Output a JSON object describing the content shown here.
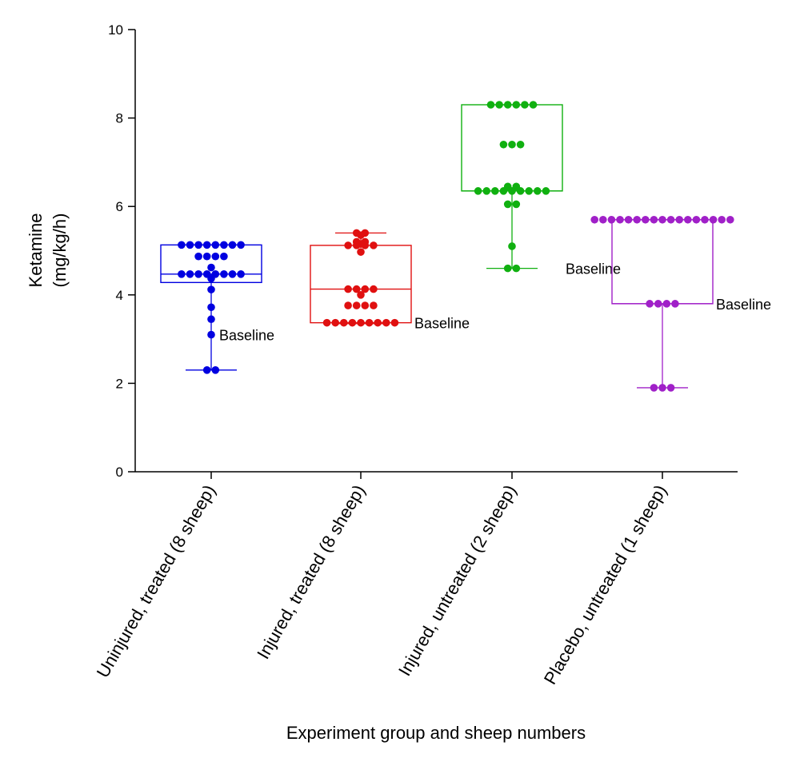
{
  "chart_data": {
    "type": "box",
    "ylabel": "Ketamine",
    "ylabel_unit": "(mg/kg/h)",
    "xlabel": "Experiment group and sheep numbers",
    "ylim": [
      0,
      10
    ],
    "yticks": [
      "0",
      "2",
      "4",
      "6",
      "8",
      "10"
    ],
    "annotation_label": "Baseline",
    "groups": [
      {
        "category": "Uninjured, treated (8 sheep)",
        "color": "#0000e0",
        "box": {
          "min": 2.3,
          "q1": 4.28,
          "median": 4.47,
          "q3": 5.13,
          "max": 5.13
        },
        "baseline": 3.1,
        "points": [
          5.13,
          5.13,
          5.13,
          5.13,
          5.13,
          5.13,
          5.13,
          5.13,
          4.87,
          4.87,
          4.87,
          4.87,
          4.62,
          4.47,
          4.47,
          4.47,
          4.47,
          4.47,
          4.47,
          4.47,
          4.47,
          4.37,
          4.12,
          3.72,
          3.45,
          3.1,
          2.3,
          2.3
        ]
      },
      {
        "category": "Injured, treated (8 sheep)",
        "color": "#e01010",
        "box": {
          "min": 3.35,
          "q1": 3.37,
          "median": 4.13,
          "q3": 5.12,
          "max": 5.4
        },
        "baseline": 3.37,
        "points": [
          5.4,
          5.4,
          5.35,
          5.2,
          5.2,
          5.15,
          5.12,
          5.12,
          5.12,
          5.12,
          4.97,
          4.13,
          4.13,
          4.13,
          4.13,
          4.0,
          3.76,
          3.76,
          3.76,
          3.76,
          3.37,
          3.37,
          3.37,
          3.37,
          3.37,
          3.37,
          3.37,
          3.37,
          3.37
        ]
      },
      {
        "category": "Injured, untreated (2 sheep)",
        "color": "#10b010",
        "box": {
          "min": 4.6,
          "q1": 6.35,
          "median": 6.35,
          "q3": 8.3,
          "max": 8.3
        },
        "baseline": 4.6,
        "points": [
          8.3,
          8.3,
          8.3,
          8.3,
          8.3,
          8.3,
          7.4,
          7.4,
          7.4,
          6.45,
          6.45,
          6.35,
          6.35,
          6.35,
          6.35,
          6.35,
          6.35,
          6.35,
          6.35,
          6.35,
          6.05,
          6.05,
          5.1,
          4.6,
          4.6
        ]
      },
      {
        "category": "Placebo, untreated (1 sheep)",
        "color": "#a020c8",
        "box": {
          "min": 1.9,
          "q1": 3.8,
          "median": 3.8,
          "q3": 5.7,
          "max": 5.7
        },
        "baseline": 3.8,
        "points": [
          5.7,
          5.7,
          5.7,
          5.7,
          5.7,
          5.7,
          5.7,
          5.7,
          5.7,
          5.7,
          5.7,
          5.7,
          5.7,
          5.7,
          5.7,
          5.7,
          5.7,
          3.8,
          3.8,
          3.8,
          3.8,
          1.9,
          1.9,
          1.9
        ]
      }
    ]
  }
}
